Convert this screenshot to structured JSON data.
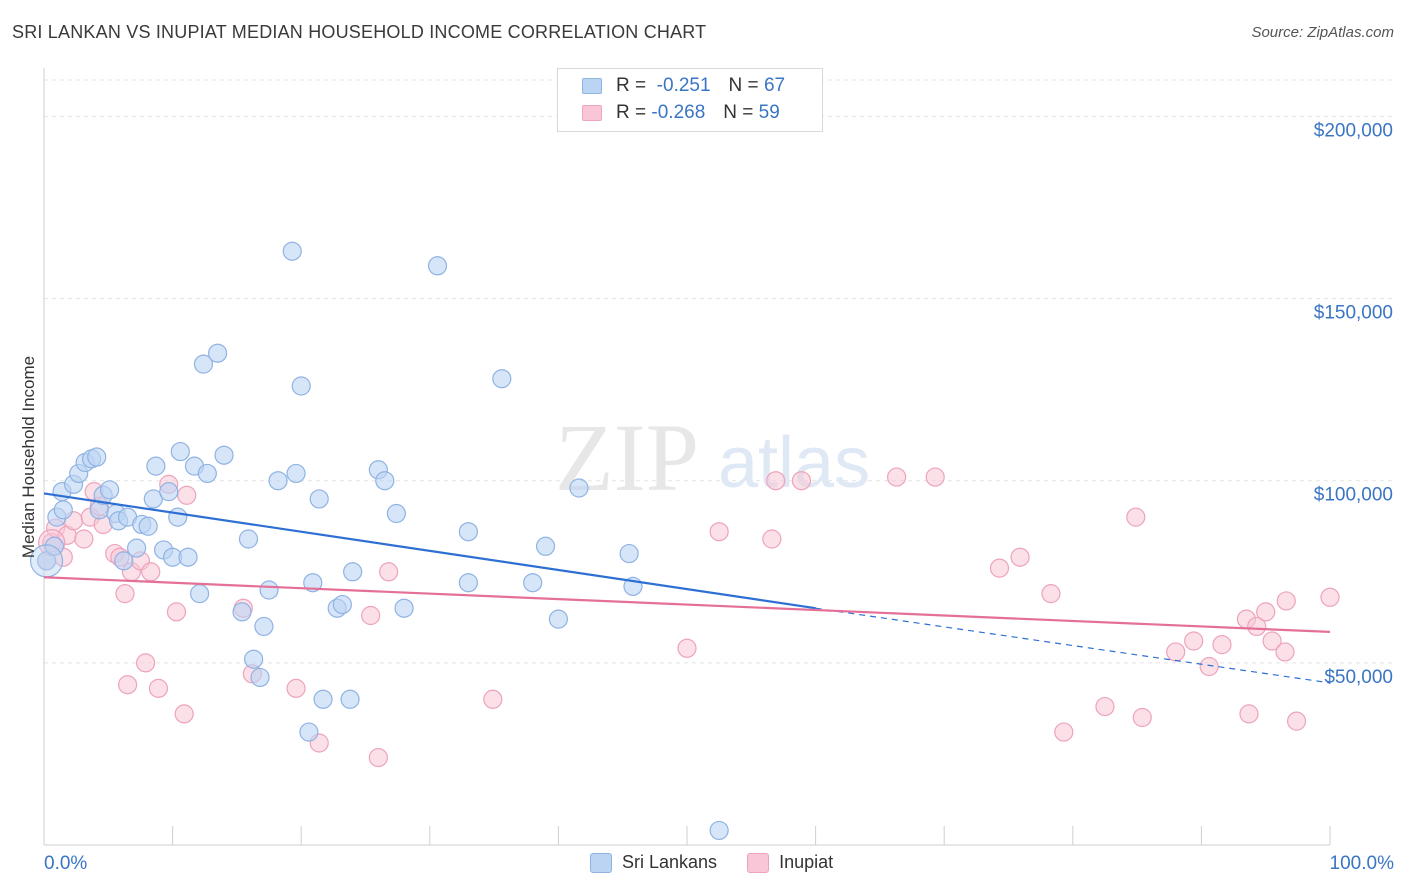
{
  "header": {
    "title": "SRI LANKAN VS INUPIAT MEDIAN HOUSEHOLD INCOME CORRELATION CHART",
    "source": "Source: ZipAtlas.com"
  },
  "legend": {
    "rows": [
      {
        "r_label": "R =",
        "r_value": "-0.251",
        "n_label": "N =",
        "n_value": "67"
      },
      {
        "r_label": "R =",
        "r_value": "-0.268",
        "n_label": "N =",
        "n_value": "59"
      }
    ]
  },
  "bottom_legend": {
    "series_a": "Sri Lankans",
    "series_b": "Inupiat"
  },
  "watermark": {
    "zip": "ZIP",
    "atlas": "atlas"
  },
  "colors": {
    "blue_fill": "#bcd4f3",
    "blue_stroke": "#8fb3e3",
    "blue_line": "#2e6fd4",
    "pink_fill": "#f8c6d6",
    "pink_stroke": "#eda3bb",
    "pink_line": "#e46f97",
    "tick_text": "#3a75c4",
    "grid": "#e3e3e3"
  },
  "chart_data": {
    "type": "scatter",
    "title": "SRI LANKAN VS INUPIAT MEDIAN HOUSEHOLD INCOME CORRELATION CHART",
    "xlabel": "",
    "ylabel": "Median Household Income",
    "xlim": [
      0,
      100
    ],
    "ylim": [
      0,
      210000
    ],
    "x_tick_labels": [
      "0.0%",
      "100.0%"
    ],
    "y_ticks": [
      50000,
      100000,
      150000,
      200000
    ],
    "y_tick_labels": [
      "$50,000",
      "$100,000",
      "$150,000",
      "$200,000"
    ],
    "grid": true,
    "legend_position": "top-center",
    "series": [
      {
        "name": "Sri Lankans",
        "color": "#bcd4f3",
        "r": -0.251,
        "n": 67,
        "trend": {
          "x": [
            0,
            60
          ],
          "y": [
            96500,
            65000
          ],
          "dashed_to": [
            100,
            44500
          ]
        },
        "points": [
          [
            0.2,
            78000
          ],
          [
            0.8,
            82000
          ],
          [
            1.0,
            90000
          ],
          [
            1.5,
            92000
          ],
          [
            1.4,
            97000
          ],
          [
            2.3,
            99000
          ],
          [
            2.7,
            102000
          ],
          [
            3.2,
            105000
          ],
          [
            3.7,
            106000
          ],
          [
            4.1,
            106500
          ],
          [
            4.3,
            92000
          ],
          [
            4.6,
            96000
          ],
          [
            5.1,
            97500
          ],
          [
            5.6,
            91000
          ],
          [
            5.8,
            89000
          ],
          [
            6.5,
            90000
          ],
          [
            6.2,
            78000
          ],
          [
            7.2,
            81500
          ],
          [
            7.6,
            88000
          ],
          [
            8.1,
            87500
          ],
          [
            8.5,
            95000
          ],
          [
            8.7,
            104000
          ],
          [
            9.3,
            81000
          ],
          [
            9.7,
            97000
          ],
          [
            10.0,
            79000
          ],
          [
            10.4,
            90000
          ],
          [
            10.6,
            108000
          ],
          [
            11.2,
            79000
          ],
          [
            11.7,
            104000
          ],
          [
            12.1,
            69000
          ],
          [
            12.4,
            132000
          ],
          [
            12.7,
            102000
          ],
          [
            13.5,
            135000
          ],
          [
            14.0,
            107000
          ],
          [
            15.4,
            64000
          ],
          [
            15.9,
            84000
          ],
          [
            16.3,
            51000
          ],
          [
            16.8,
            46000
          ],
          [
            17.1,
            60000
          ],
          [
            17.5,
            70000
          ],
          [
            18.2,
            100000
          ],
          [
            19.3,
            163000
          ],
          [
            19.6,
            102000
          ],
          [
            20.0,
            126000
          ],
          [
            20.6,
            31000
          ],
          [
            20.9,
            72000
          ],
          [
            21.4,
            95000
          ],
          [
            21.7,
            40000
          ],
          [
            22.8,
            65000
          ],
          [
            23.2,
            66000
          ],
          [
            23.8,
            40000
          ],
          [
            24.0,
            75000
          ],
          [
            26.0,
            103000
          ],
          [
            26.5,
            100000
          ],
          [
            27.4,
            91000
          ],
          [
            28.0,
            65000
          ],
          [
            30.6,
            159000
          ],
          [
            33.0,
            86000
          ],
          [
            33.0,
            72000
          ],
          [
            35.6,
            128000
          ],
          [
            38.0,
            72000
          ],
          [
            39.0,
            82000
          ],
          [
            40.0,
            62000
          ],
          [
            41.6,
            98000
          ],
          [
            45.5,
            80000
          ],
          [
            45.8,
            71000
          ],
          [
            52.5,
            4000
          ]
        ]
      },
      {
        "name": "Inupiat",
        "color": "#f8c6d6",
        "r": -0.268,
        "n": 59,
        "trend": {
          "x": [
            0,
            100
          ],
          "y": [
            73500,
            58500
          ]
        },
        "points": [
          [
            0.2,
            78000
          ],
          [
            0.6,
            83000
          ],
          [
            0.9,
            87000
          ],
          [
            1.5,
            79000
          ],
          [
            1.8,
            85000
          ],
          [
            2.3,
            89000
          ],
          [
            3.1,
            84000
          ],
          [
            3.6,
            90000
          ],
          [
            3.9,
            97000
          ],
          [
            4.3,
            93000
          ],
          [
            4.6,
            88000
          ],
          [
            5.5,
            80000
          ],
          [
            5.9,
            79000
          ],
          [
            6.3,
            69000
          ],
          [
            6.5,
            44000
          ],
          [
            6.8,
            75000
          ],
          [
            7.5,
            78000
          ],
          [
            7.9,
            50000
          ],
          [
            8.3,
            75000
          ],
          [
            8.9,
            43000
          ],
          [
            9.7,
            99000
          ],
          [
            10.3,
            64000
          ],
          [
            10.9,
            36000
          ],
          [
            11.1,
            96000
          ],
          [
            15.5,
            65000
          ],
          [
            16.2,
            47000
          ],
          [
            19.6,
            43000
          ],
          [
            21.4,
            28000
          ],
          [
            25.4,
            63000
          ],
          [
            26.0,
            24000
          ],
          [
            26.8,
            75000
          ],
          [
            34.9,
            40000
          ],
          [
            50.0,
            54000
          ],
          [
            52.5,
            86000
          ],
          [
            56.6,
            84000
          ],
          [
            56.9,
            100000
          ],
          [
            58.9,
            100000
          ],
          [
            66.3,
            101000
          ],
          [
            69.3,
            101000
          ],
          [
            74.3,
            76000
          ],
          [
            75.9,
            79000
          ],
          [
            78.3,
            69000
          ],
          [
            79.3,
            31000
          ],
          [
            82.5,
            38000
          ],
          [
            84.9,
            90000
          ],
          [
            85.4,
            35000
          ],
          [
            88.0,
            53000
          ],
          [
            89.4,
            56000
          ],
          [
            90.6,
            49000
          ],
          [
            91.6,
            55000
          ],
          [
            93.5,
            62000
          ],
          [
            93.7,
            36000
          ],
          [
            94.3,
            60000
          ],
          [
            95.0,
            64000
          ],
          [
            95.5,
            56000
          ],
          [
            96.5,
            53000
          ],
          [
            96.6,
            67000
          ],
          [
            97.4,
            34000
          ],
          [
            100.0,
            68000
          ]
        ]
      }
    ]
  }
}
